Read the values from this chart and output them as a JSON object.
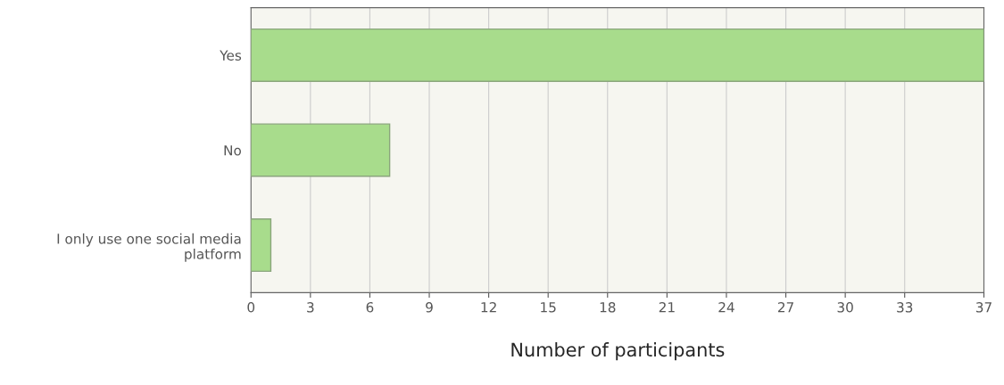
{
  "chart_data": {
    "type": "bar",
    "orientation": "horizontal",
    "xlabel": "Number of participants",
    "categories": [
      "Yes",
      "No",
      "I only use one social media\nplatform"
    ],
    "values": [
      37,
      7,
      1
    ],
    "color": "#a8dc8c",
    "xlim": [
      0,
      37
    ],
    "xticks": [
      0,
      3,
      6,
      9,
      12,
      15,
      18,
      21,
      24,
      27,
      30,
      33,
      37
    ],
    "grid": "x"
  }
}
